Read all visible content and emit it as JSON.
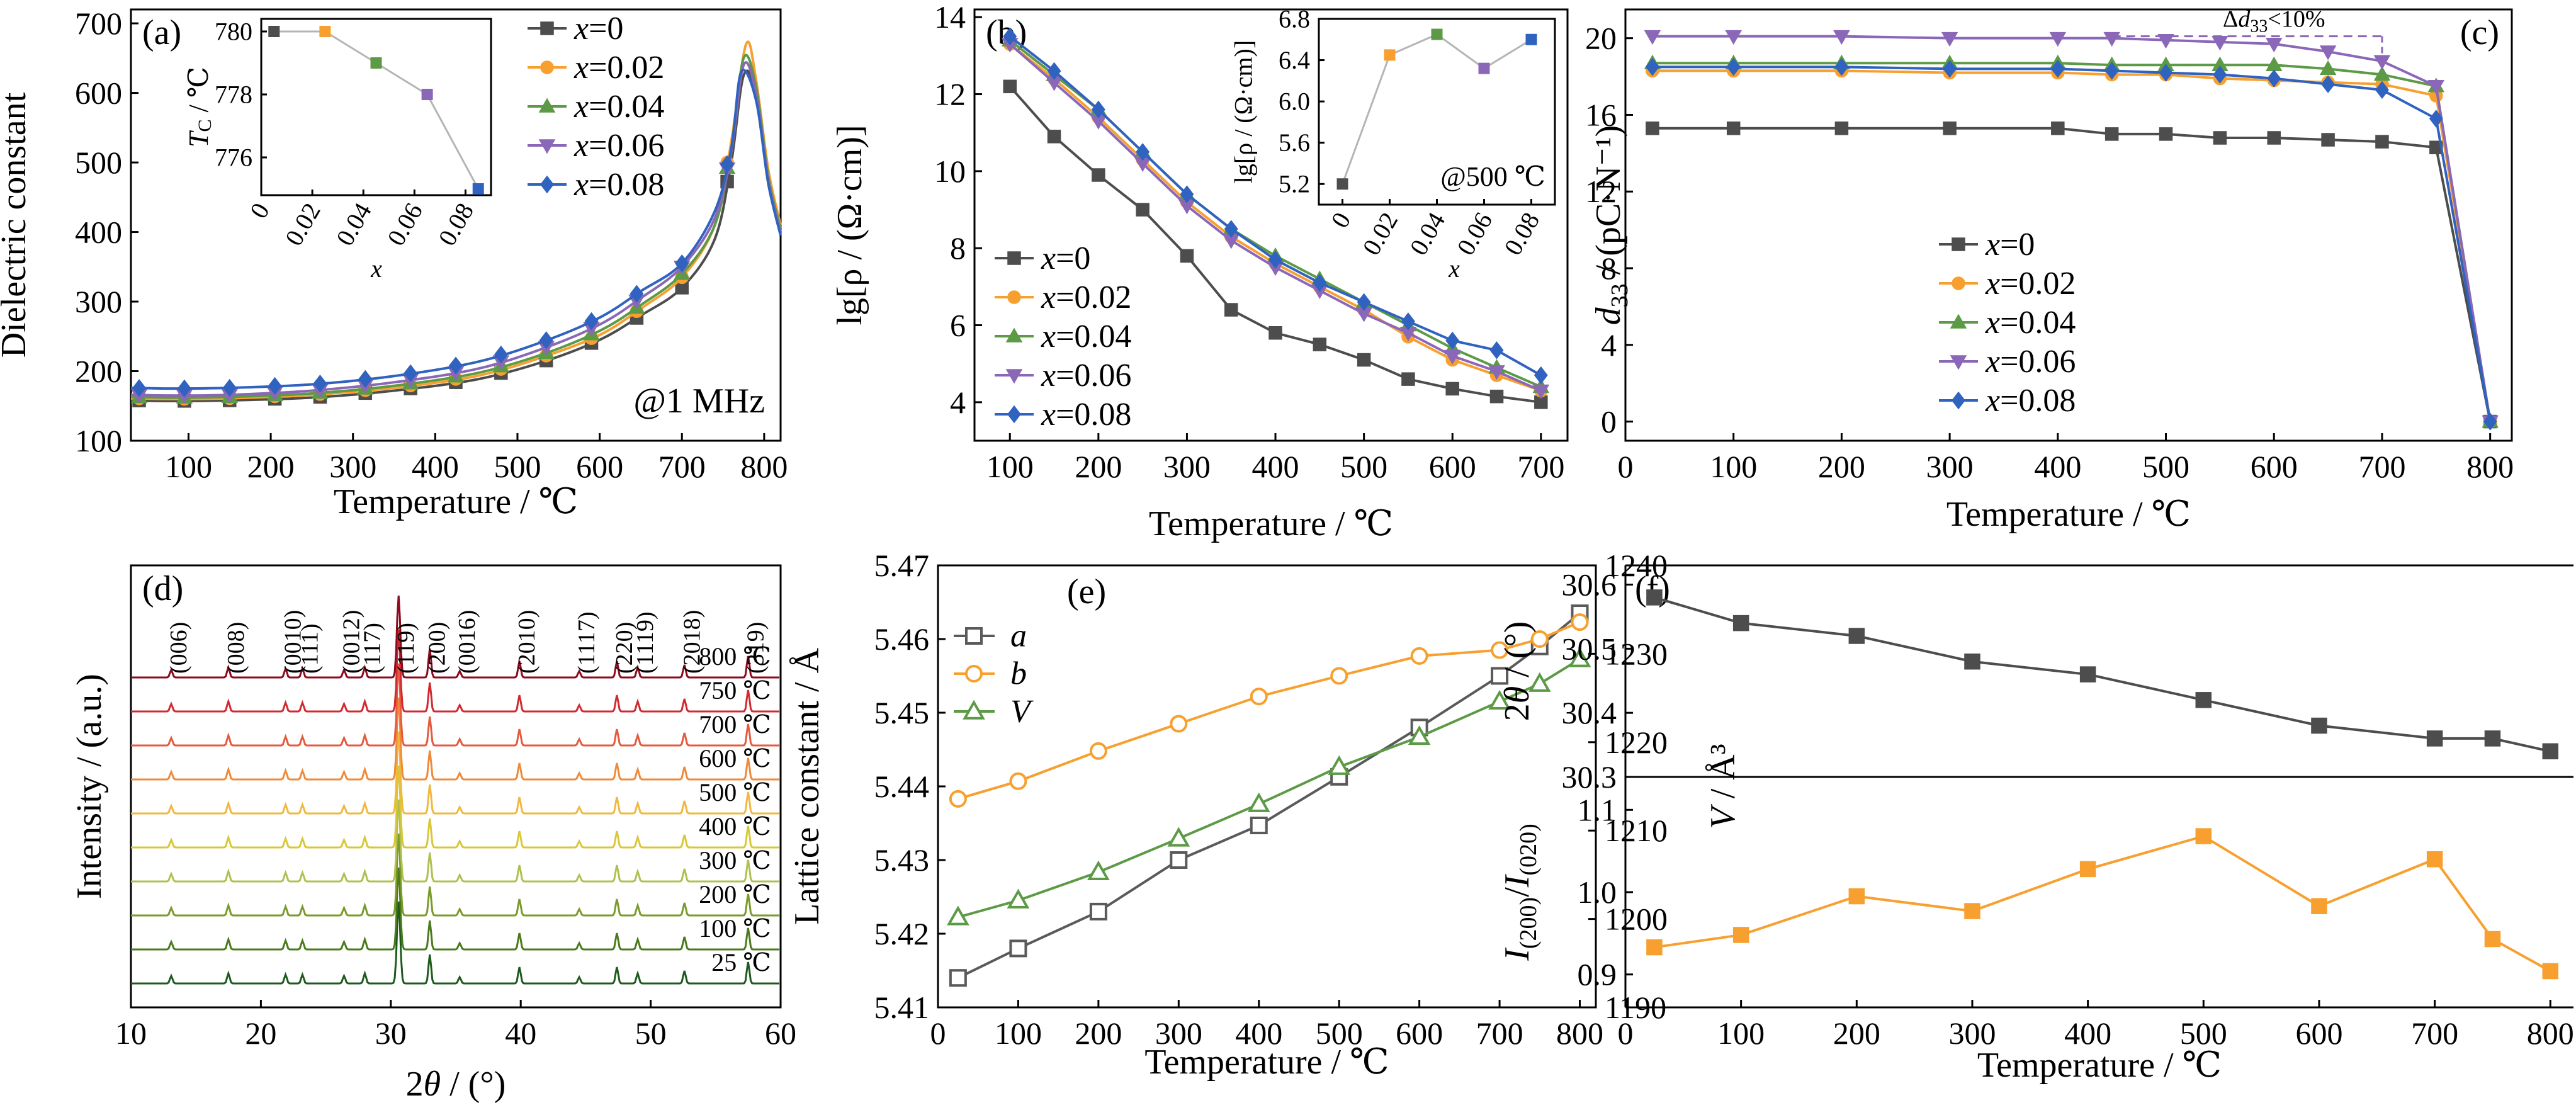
{
  "figure": {
    "colors": {
      "x0": "#4d4d4d",
      "x002": "#f7a030",
      "x004": "#5c9a46",
      "x006": "#8b67b8",
      "x008": "#3062c0",
      "xrd_25": "#1e5a1e",
      "xrd_800": "#8b0a1e",
      "lat_a": "#5a5a5a",
      "lat_b": "#f7a030",
      "lat_V": "#5c9a46"
    }
  },
  "chart_data": [
    {
      "id": "a",
      "panel_label": "(a)",
      "type": "line",
      "xlabel": "Temperature / ℃",
      "ylabel": "Dielectric constant",
      "xlim": [
        30,
        820
      ],
      "ylim": [
        100,
        720
      ],
      "xticks": [
        100,
        200,
        300,
        400,
        500,
        600,
        700,
        800
      ],
      "yticks": [
        100,
        200,
        300,
        400,
        500,
        600,
        700
      ],
      "annotation": "@1 MHz",
      "legend_position": "top-right",
      "markers": [
        "square",
        "circle",
        "triangle-up",
        "triangle-down",
        "diamond"
      ],
      "series": [
        {
          "name": "x=0",
          "x": [
            30,
            80,
            150,
            250,
            350,
            450,
            530,
            600,
            650,
            700,
            740,
            760,
            775,
            790,
            805,
            820
          ],
          "values": [
            158,
            157,
            158,
            162,
            172,
            188,
            213,
            245,
            280,
            320,
            390,
            500,
            625,
            600,
            470,
            400
          ]
        },
        {
          "name": "x=0.02",
          "x": [
            30,
            80,
            150,
            250,
            350,
            450,
            530,
            600,
            650,
            700,
            740,
            760,
            778,
            790,
            805,
            820
          ],
          "values": [
            161,
            160,
            161,
            166,
            176,
            193,
            220,
            252,
            290,
            335,
            410,
            530,
            670,
            620,
            490,
            410
          ]
        },
        {
          "name": "x=0.04",
          "x": [
            30,
            80,
            150,
            250,
            350,
            450,
            530,
            600,
            650,
            700,
            740,
            760,
            775,
            790,
            805,
            820
          ],
          "values": [
            163,
            162,
            163,
            168,
            179,
            197,
            224,
            258,
            295,
            340,
            410,
            520,
            650,
            610,
            480,
            405
          ]
        },
        {
          "name": "x=0.06",
          "x": [
            30,
            80,
            150,
            250,
            350,
            450,
            530,
            600,
            650,
            700,
            740,
            760,
            775,
            790,
            805,
            820
          ],
          "values": [
            166,
            165,
            166,
            172,
            184,
            203,
            232,
            267,
            305,
            350,
            420,
            515,
            640,
            600,
            475,
            400
          ]
        },
        {
          "name": "x=0.08",
          "x": [
            30,
            80,
            150,
            250,
            350,
            450,
            530,
            600,
            650,
            700,
            740,
            760,
            772,
            790,
            805,
            820
          ],
          "values": [
            176,
            175,
            176,
            181,
            193,
            213,
            242,
            277,
            315,
            355,
            430,
            520,
            630,
            590,
            470,
            395
          ]
        }
      ],
      "inset": {
        "type": "line",
        "xlabel": "x",
        "ylabel": "T_C / ℃",
        "ylabel_main": "T",
        "ylabel_sub": "C",
        "ylabel_unit": " / ℃",
        "xlim": [
          0,
          0.09
        ],
        "ylim": [
          774.8,
          780.4
        ],
        "xticks": [
          "0",
          "0.02",
          "0.04",
          "0.06",
          "0.08"
        ],
        "xtick_values": [
          0,
          0.02,
          0.04,
          0.06,
          0.08
        ],
        "yticks": [
          776,
          778,
          780
        ],
        "x": [
          0.005,
          0.025,
          0.045,
          0.065,
          0.085
        ],
        "values": [
          780,
          780,
          779,
          778,
          775
        ]
      }
    },
    {
      "id": "b",
      "panel_label": "(b)",
      "type": "line",
      "xlabel": "Temperature / ℃",
      "ylabel": "lg[ρ / (Ω·cm)]",
      "xlim": [
        60,
        730
      ],
      "ylim": [
        3,
        14.2
      ],
      "xticks": [
        100,
        200,
        300,
        400,
        500,
        600,
        700
      ],
      "yticks": [
        4,
        6,
        8,
        10,
        12,
        14
      ],
      "legend_position": "bottom-left",
      "markers": [
        "square",
        "circle",
        "triangle-up",
        "triangle-down",
        "diamond"
      ],
      "series": [
        {
          "name": "x=0",
          "x": [
            100,
            150,
            200,
            250,
            300,
            350,
            400,
            450,
            500,
            550,
            600,
            650,
            700
          ],
          "values": [
            12.2,
            10.9,
            9.9,
            9.0,
            7.8,
            6.4,
            5.8,
            5.5,
            5.1,
            4.6,
            4.35,
            4.15,
            4.0
          ]
        },
        {
          "name": "x=0.02",
          "x": [
            100,
            150,
            200,
            250,
            300,
            350,
            400,
            450,
            500,
            550,
            600,
            650,
            700
          ],
          "values": [
            13.3,
            12.4,
            11.4,
            10.3,
            9.2,
            8.3,
            7.6,
            7.0,
            6.4,
            5.7,
            5.1,
            4.7,
            4.3
          ]
        },
        {
          "name": "x=0.04",
          "x": [
            100,
            150,
            200,
            250,
            300,
            350,
            400,
            450,
            500,
            550,
            600,
            650,
            700
          ],
          "values": [
            13.4,
            12.5,
            11.6,
            10.5,
            9.4,
            8.5,
            7.8,
            7.2,
            6.6,
            6.0,
            5.4,
            4.9,
            4.4
          ]
        },
        {
          "name": "x=0.06",
          "x": [
            100,
            150,
            200,
            250,
            300,
            350,
            400,
            450,
            500,
            550,
            600,
            650,
            700
          ],
          "values": [
            13.3,
            12.3,
            11.3,
            10.2,
            9.1,
            8.2,
            7.5,
            6.9,
            6.3,
            5.8,
            5.2,
            4.8,
            4.3
          ]
        },
        {
          "name": "x=0.08",
          "x": [
            100,
            150,
            200,
            250,
            300,
            350,
            400,
            450,
            500,
            550,
            600,
            650,
            700
          ],
          "values": [
            13.5,
            12.6,
            11.6,
            10.5,
            9.4,
            8.5,
            7.7,
            7.1,
            6.6,
            6.1,
            5.6,
            5.35,
            4.7
          ]
        }
      ],
      "inset": {
        "type": "line",
        "xlabel": "x",
        "ylabel": "lg[ρ / (Ω·cm)]",
        "annotation": "@500 ℃",
        "xlim": [
          -0.01,
          0.09
        ],
        "ylim": [
          5.0,
          6.8
        ],
        "xticks": [
          "0",
          "0.02",
          "0.04",
          "0.06",
          "0.08"
        ],
        "xtick_values": [
          0,
          0.02,
          0.04,
          0.06,
          0.08
        ],
        "yticks": [
          "5.2",
          "5.6",
          "6.0",
          "6.4",
          "6.8"
        ],
        "ytick_values": [
          5.2,
          5.6,
          6.0,
          6.4,
          6.8
        ],
        "x": [
          0,
          0.02,
          0.04,
          0.06,
          0.08
        ],
        "values": [
          5.2,
          6.45,
          6.65,
          6.32,
          6.6
        ]
      }
    },
    {
      "id": "c",
      "panel_label": "(c)",
      "type": "line",
      "xlabel": "Temperature / ℃",
      "ylabel": "d33 / (pC·N⁻¹)",
      "ylabel_main": "d",
      "ylabel_sub": "33",
      "ylabel_unit": " / (pC·N⁻¹)",
      "xlim": [
        0,
        820
      ],
      "ylim": [
        -1,
        21.5
      ],
      "xticks": [
        0,
        100,
        200,
        300,
        400,
        500,
        600,
        700,
        800
      ],
      "yticks": [
        0,
        4,
        8,
        12,
        16,
        20
      ],
      "legend_position": "bottom-left",
      "markers": [
        "square",
        "circle",
        "triangle-up",
        "triangle-down",
        "diamond"
      ],
      "annotation": "Δd33<10%",
      "annotation_parts": [
        "Δ",
        "d",
        "33",
        "<10%"
      ],
      "series": [
        {
          "name": "x=0",
          "x": [
            25,
            100,
            200,
            300,
            400,
            450,
            500,
            550,
            600,
            650,
            700,
            750,
            800
          ],
          "values": [
            15.3,
            15.3,
            15.3,
            15.3,
            15.3,
            15.0,
            15.0,
            14.8,
            14.8,
            14.7,
            14.6,
            14.3,
            0
          ]
        },
        {
          "name": "x=0.02",
          "x": [
            25,
            100,
            200,
            300,
            400,
            450,
            500,
            550,
            600,
            650,
            700,
            750,
            800
          ],
          "values": [
            18.3,
            18.3,
            18.3,
            18.2,
            18.2,
            18.1,
            18.1,
            17.9,
            17.8,
            17.7,
            17.6,
            17.0,
            0
          ]
        },
        {
          "name": "x=0.04",
          "x": [
            25,
            100,
            200,
            300,
            400,
            450,
            500,
            550,
            600,
            650,
            700,
            750,
            800
          ],
          "values": [
            18.7,
            18.7,
            18.7,
            18.7,
            18.7,
            18.6,
            18.6,
            18.6,
            18.6,
            18.4,
            18.1,
            17.5,
            0
          ]
        },
        {
          "name": "x=0.06",
          "x": [
            25,
            100,
            200,
            300,
            400,
            450,
            500,
            550,
            600,
            650,
            700,
            750,
            800
          ],
          "values": [
            20.1,
            20.1,
            20.1,
            20.0,
            20.0,
            20.0,
            19.9,
            19.8,
            19.7,
            19.3,
            18.8,
            17.5,
            0
          ]
        },
        {
          "name": "x=0.08",
          "x": [
            25,
            100,
            200,
            300,
            400,
            450,
            500,
            550,
            600,
            650,
            700,
            750,
            800
          ],
          "values": [
            18.5,
            18.5,
            18.5,
            18.4,
            18.4,
            18.3,
            18.2,
            18.1,
            17.9,
            17.6,
            17.3,
            15.8,
            0
          ]
        }
      ]
    },
    {
      "id": "d",
      "panel_label": "(d)",
      "type": "line",
      "xlabel": "2θ / (°)",
      "xlabel_main": "2",
      "xlabel_italic": "θ",
      "xlabel_unit": " / (°)",
      "ylabel": "Intensity / (a.u.)",
      "xlim": [
        10,
        60
      ],
      "xticks": [
        10,
        20,
        30,
        40,
        50,
        60
      ],
      "peaks": [
        {
          "label": "(006)",
          "two_theta": 13.1
        },
        {
          "label": "(008)",
          "two_theta": 17.5
        },
        {
          "label": "(0010)",
          "two_theta": 21.9
        },
        {
          "label": "(111)",
          "two_theta": 23.2
        },
        {
          "label": "(0012)",
          "two_theta": 26.4
        },
        {
          "label": "(117)",
          "two_theta": 28.0
        },
        {
          "label": "(119)",
          "two_theta": 30.6
        },
        {
          "label": "(200)",
          "two_theta": 33.0
        },
        {
          "label": "(0016)",
          "two_theta": 35.3
        },
        {
          "label": "(2010)",
          "two_theta": 39.9
        },
        {
          "label": "(1117)",
          "two_theta": 44.5
        },
        {
          "label": "(220)",
          "two_theta": 47.4
        },
        {
          "label": "(1119)",
          "two_theta": 49.0
        },
        {
          "label": "(2018)",
          "two_theta": 52.6
        },
        {
          "label": "(319)",
          "two_theta": 57.5
        }
      ],
      "series": [
        {
          "name": "25 ℃",
          "color": "#1e5a1e"
        },
        {
          "name": "100 ℃",
          "color": "#4a7a1a"
        },
        {
          "name": "200 ℃",
          "color": "#7a9a2a"
        },
        {
          "name": "300 ℃",
          "color": "#b0c050"
        },
        {
          "name": "400 ℃",
          "color": "#d8c838"
        },
        {
          "name": "500 ℃",
          "color": "#f0b840"
        },
        {
          "name": "600 ℃",
          "color": "#ee8a3a"
        },
        {
          "name": "700 ℃",
          "color": "#e45a3c"
        },
        {
          "name": "750 ℃",
          "color": "#d02a30"
        },
        {
          "name": "800 ℃",
          "color": "#8b0a1e"
        }
      ]
    },
    {
      "id": "e",
      "panel_label": "(e)",
      "type": "line",
      "xlabel": "Temperature / ℃",
      "ylabel": "Lattice constant / Å",
      "ylabel_right": "V / Å³",
      "ylabel_right_main": "V",
      "ylabel_right_unit": " / Å³",
      "xlim": [
        0,
        820
      ],
      "ylim": [
        5.41,
        5.47
      ],
      "ylim_right": [
        1190,
        1240
      ],
      "xticks": [
        0,
        100,
        200,
        300,
        400,
        500,
        600,
        700,
        800
      ],
      "yticks": [
        "5.41",
        "5.42",
        "5.43",
        "5.44",
        "5.45",
        "5.46",
        "5.47"
      ],
      "ytick_values": [
        5.41,
        5.42,
        5.43,
        5.44,
        5.45,
        5.46,
        5.47
      ],
      "yticks_right": [
        1190,
        1200,
        1210,
        1220,
        1230,
        1240
      ],
      "legend_position": "top-left",
      "markers": [
        "square-open",
        "circle-open",
        "triangle-open"
      ],
      "series": [
        {
          "name": "a",
          "axis": "left",
          "x": [
            25,
            100,
            200,
            300,
            400,
            500,
            600,
            700,
            750,
            800
          ],
          "values": [
            5.414,
            5.418,
            5.423,
            5.43,
            5.4347,
            5.4413,
            5.448,
            5.455,
            5.459,
            5.4635
          ]
        },
        {
          "name": "b",
          "axis": "left",
          "x": [
            25,
            100,
            200,
            300,
            400,
            500,
            600,
            700,
            750,
            800
          ],
          "values": [
            5.4383,
            5.4407,
            5.4448,
            5.4485,
            5.4522,
            5.455,
            5.4577,
            5.4585,
            5.46,
            5.4623
          ]
        },
        {
          "name": "V",
          "axis": "right",
          "x": [
            25,
            100,
            200,
            300,
            400,
            500,
            600,
            700,
            750,
            800
          ],
          "values": [
            1200.2,
            1202.1,
            1205.3,
            1209.1,
            1213.0,
            1217.2,
            1220.6,
            1224.6,
            1226.6,
            1229.4
          ]
        }
      ]
    },
    {
      "id": "f",
      "panel_label": "(f)",
      "type": "line",
      "xlabel": "Temperature / ℃",
      "xlim": [
        0,
        820
      ],
      "xticks": [
        0,
        100,
        200,
        300,
        400,
        500,
        600,
        700,
        800
      ],
      "top": {
        "ylabel": "2θ / (°)",
        "ylabel_main": "2",
        "ylabel_italic": "θ",
        "ylabel_unit": " / (°)",
        "ylim": [
          30.3,
          30.63
        ],
        "yticks": [
          "30.3",
          "30.4",
          "30.5",
          "30.6"
        ],
        "ytick_values": [
          30.3,
          30.4,
          30.5,
          30.6
        ],
        "x": [
          25,
          100,
          200,
          300,
          400,
          500,
          600,
          700,
          750,
          800
        ],
        "values": [
          30.58,
          30.54,
          30.52,
          30.48,
          30.46,
          30.42,
          30.38,
          30.36,
          30.36,
          30.34
        ]
      },
      "bottom": {
        "ylabel": "I(200)/I(020)",
        "ylabel_parts": [
          "I",
          "(200)",
          "/",
          "I",
          "(020)"
        ],
        "ylim": [
          0.86,
          1.14
        ],
        "yticks": [
          "0.9",
          "1.0",
          "1.1"
        ],
        "ytick_values": [
          0.9,
          1.0,
          1.1
        ],
        "x": [
          25,
          100,
          200,
          300,
          400,
          500,
          600,
          700,
          750,
          800
        ],
        "values": [
          0.933,
          0.948,
          0.995,
          0.977,
          1.028,
          1.068,
          0.983,
          1.04,
          0.943,
          0.904
        ]
      }
    }
  ]
}
